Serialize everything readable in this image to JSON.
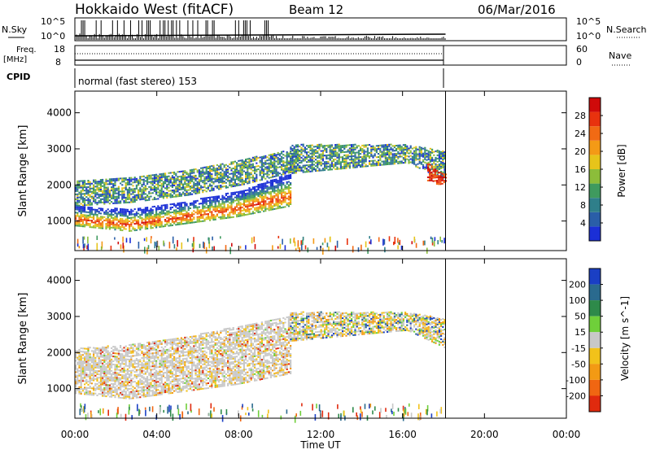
{
  "header": {
    "radar": "Hokkaido West (fitACF)",
    "beam": "Beam 12",
    "date": "06/Mar/2016"
  },
  "strip_labels": {
    "nsky": "N.Sky",
    "nsky_top": "10^5",
    "nsky_bottom": "10^0",
    "nsearch": "N.Search",
    "nsearch_top": "10^5",
    "nsearch_bottom": "10^0",
    "freq": "Freq.",
    "freq_unit": "[MHz]",
    "freq_top": "18",
    "freq_bottom": "8",
    "nave": "Nave",
    "nave_top": "60",
    "nave_bottom": "0",
    "cpid": "CPID",
    "cpid_value": "normal (fast stereo) 153"
  },
  "chart_data": [
    {
      "type": "heatmap",
      "panel": "power",
      "ylabel": "Slant Range [km]",
      "xlabel": "",
      "x_ticks": [
        "00:00",
        "04:00",
        "08:00",
        "12:00",
        "16:00",
        "20:00",
        "00:00"
      ],
      "x_range_hours": [
        0,
        24
      ],
      "y_ticks": [
        1000,
        2000,
        3000,
        4000
      ],
      "ylim": [
        180,
        4600
      ],
      "colorbar": {
        "label": "Power [dB]",
        "ticks": [
          "4",
          "8",
          "12",
          "16",
          "20",
          "24",
          "28"
        ],
        "colors": [
          "#1b2fd6",
          "#2a5ea8",
          "#2f7f8a",
          "#3f9a5e",
          "#8cbd3a",
          "#e7c41a",
          "#f49a16",
          "#f16a14",
          "#e8320e",
          "#cf0a0a"
        ]
      },
      "data_end_hour": 18.1,
      "regions": [
        {
          "start": 0.0,
          "end": 10.5,
          "lower": [
            850,
            700,
            900,
            1100,
            1400
          ],
          "upper": [
            1400,
            1300,
            1500,
            1800,
            2300
          ],
          "level": "high"
        },
        {
          "start": 0.0,
          "end": 11.0,
          "lower": [
            1400,
            1500,
            1700,
            2000,
            2400
          ],
          "upper": [
            2100,
            2200,
            2400,
            2700,
            3000
          ],
          "level": "mid"
        },
        {
          "start": 10.5,
          "end": 18.1,
          "lower": [
            2300,
            2400,
            2500,
            2600,
            2100
          ],
          "upper": [
            3100,
            3100,
            3100,
            3100,
            2900
          ],
          "level": "mid"
        },
        {
          "start": 17.2,
          "end": 18.1,
          "lower": [
            2100,
            2100,
            2000,
            2000,
            2100
          ],
          "upper": [
            2600,
            2500,
            2400,
            2300,
            2300
          ],
          "level": "peak"
        }
      ]
    },
    {
      "type": "heatmap",
      "panel": "velocity",
      "ylabel": "Slant Range [km]",
      "xlabel": "Time UT",
      "x_ticks": [
        "00:00",
        "04:00",
        "08:00",
        "12:00",
        "16:00",
        "20:00",
        "00:00"
      ],
      "x_range_hours": [
        0,
        24
      ],
      "y_ticks": [
        1000,
        2000,
        3000,
        4000
      ],
      "ylim": [
        180,
        4600
      ],
      "colorbar": {
        "label": "Velocity [m s^-1]",
        "ticks": [
          "200",
          "100",
          "50",
          "15",
          "-15",
          "-50",
          "-100",
          "-200"
        ],
        "colors": [
          "#1a3fc4",
          "#2a6a8e",
          "#2e8a4a",
          "#6fcf3a",
          "#c8c8c8",
          "#f2c21a",
          "#f39a14",
          "#f06612",
          "#e02a0e"
        ]
      },
      "data_end_hour": 18.1,
      "regions": [
        {
          "start": 0.0,
          "end": 10.5,
          "lower": [
            850,
            700,
            900,
            1100,
            1400
          ],
          "upper": [
            2100,
            2200,
            2400,
            2700,
            3000
          ],
          "level": "ground"
        },
        {
          "start": 10.5,
          "end": 18.1,
          "lower": [
            2300,
            2400,
            2500,
            2600,
            2100
          ],
          "upper": [
            3100,
            3100,
            3100,
            3100,
            2900
          ],
          "level": "mixed"
        }
      ]
    }
  ]
}
